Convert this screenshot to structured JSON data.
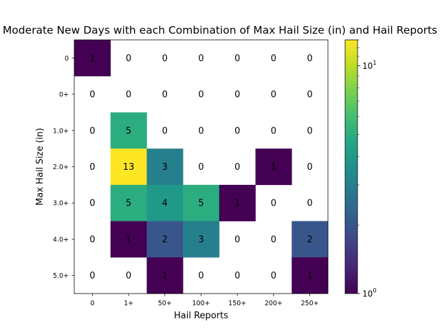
{
  "chart_data": {
    "type": "heatmap",
    "title": "Moderate New Days with each Combination of Max Hail Size (in) and Hail Reports",
    "xlabel": "Hail Reports",
    "ylabel": "Max Hail Size (in)",
    "x_categories": [
      "0",
      "1+",
      "50+",
      "100+",
      "150+",
      "200+",
      "250+"
    ],
    "y_categories": [
      "0",
      "0+",
      "1.0+",
      "2.0+",
      "3.0+",
      "4.0+",
      "5.0+"
    ],
    "values": [
      [
        1,
        0,
        0,
        0,
        0,
        0,
        0
      ],
      [
        0,
        0,
        0,
        0,
        0,
        0,
        0
      ],
      [
        0,
        5,
        0,
        0,
        0,
        0,
        0
      ],
      [
        0,
        13,
        3,
        0,
        0,
        1,
        0
      ],
      [
        0,
        5,
        4,
        5,
        1,
        0,
        0
      ],
      [
        0,
        1,
        2,
        3,
        0,
        0,
        2
      ],
      [
        0,
        0,
        1,
        0,
        0,
        0,
        1
      ]
    ],
    "colorbar": {
      "scale": "log",
      "range": [
        1,
        13
      ],
      "colormap": "viridis",
      "major_labels": [
        {
          "value": 1,
          "base": "10",
          "exp": "0"
        },
        {
          "value": 10,
          "base": "10",
          "exp": "1"
        }
      ]
    },
    "zero_cells": "blank",
    "grid": false,
    "legend": "colorbar-right"
  }
}
